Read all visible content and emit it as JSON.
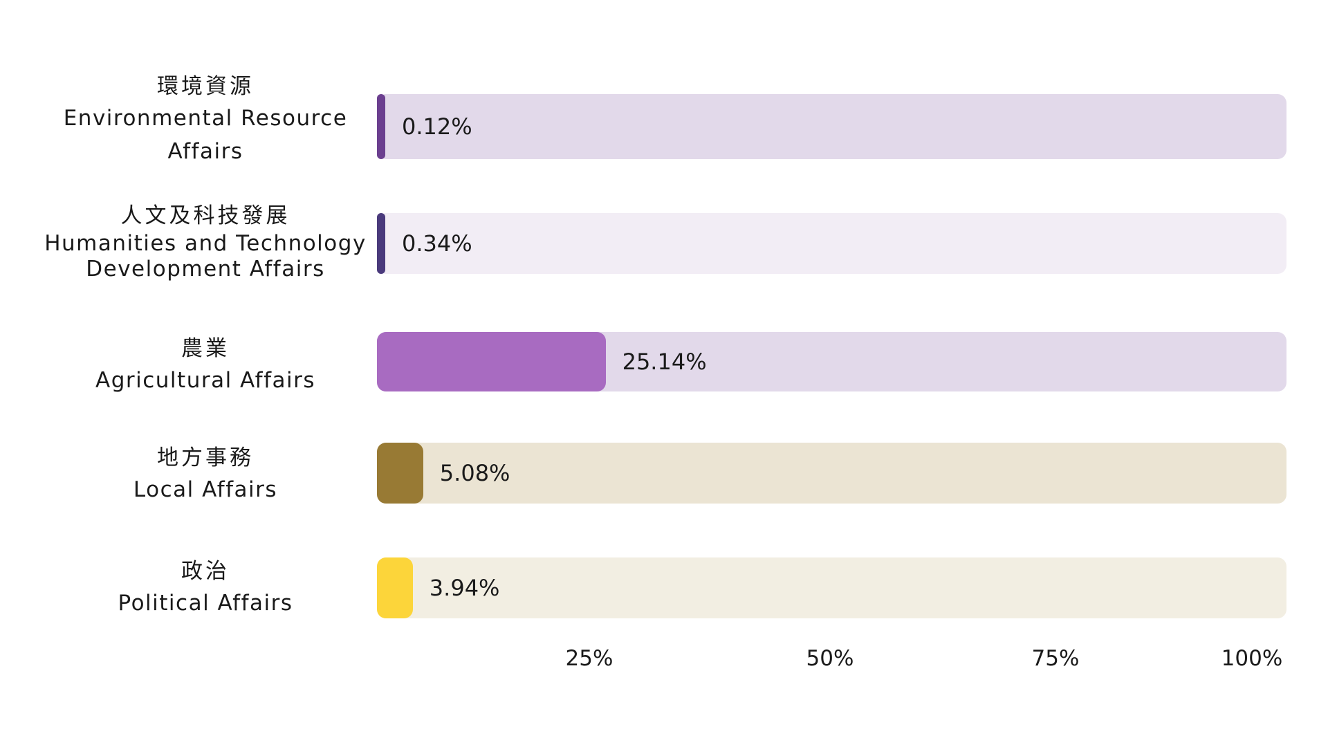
{
  "chart_data": {
    "type": "bar",
    "orientation": "horizontal",
    "categories": [
      {
        "zh": "環境資源",
        "en": "Environmental Resource Affairs"
      },
      {
        "zh": "人文及科技發展",
        "en": "Humanities and Technology Development Affairs"
      },
      {
        "zh": "農業",
        "en": "Agricultural Affairs"
      },
      {
        "zh": "地方事務",
        "en": "Local Affairs"
      },
      {
        "zh": "政治",
        "en": "Political Affairs"
      }
    ],
    "values": [
      0.12,
      0.34,
      25.14,
      5.08,
      3.94
    ],
    "value_labels": [
      "0.12%",
      "0.34%",
      "25.14%",
      "5.08%",
      "3.94%"
    ],
    "colors": [
      {
        "fill": "#6b3f8f",
        "track": "#e2d9ea"
      },
      {
        "fill": "#4a3a7c",
        "track": "#f2edf5"
      },
      {
        "fill": "#a86bc1",
        "track": "#e2d9ea"
      },
      {
        "fill": "#987a34",
        "track": "#ebe4d3"
      },
      {
        "fill": "#fcd53a",
        "track": "#f2eee2"
      }
    ],
    "xlim": [
      0,
      100
    ],
    "x_ticks": [
      "25%",
      "50%",
      "75%",
      "100%"
    ],
    "grid": false,
    "legend": "none"
  }
}
